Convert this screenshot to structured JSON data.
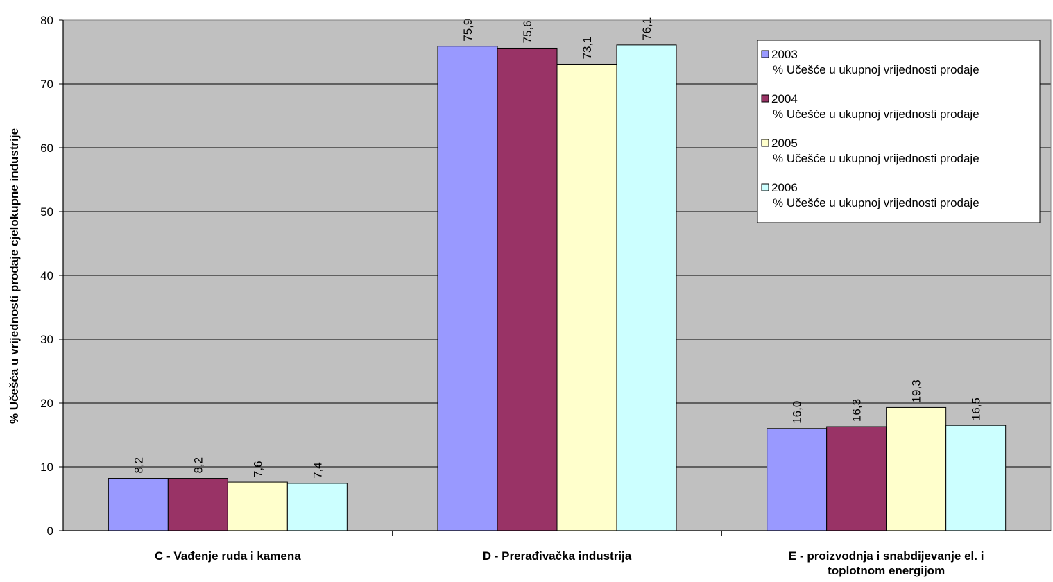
{
  "chart_data": {
    "type": "bar",
    "ylabel": "% Učešća u vrijednosti prodaje cjelokupne industrije",
    "ylim": [
      0,
      80
    ],
    "yticks": [
      0,
      10,
      20,
      30,
      40,
      50,
      60,
      70,
      80
    ],
    "categories": [
      [
        "C - Vađenje ruda i kamena"
      ],
      [
        "D - Prerađivačka industrija"
      ],
      [
        "E - proizvodnja i snabdijevanje el. i",
        "toplotnom energijom"
      ]
    ],
    "series": [
      {
        "name_year": "2003",
        "name_desc": "% Učešće u ukupnoj vrijednosti prodaje",
        "color": "#9999ff",
        "values": [
          8.2,
          75.9,
          16.0
        ],
        "labels": [
          "8,2",
          "75,9",
          "16,0"
        ]
      },
      {
        "name_year": "2004",
        "name_desc": "% Učešće u ukupnoj vrijednosti prodaje",
        "color": "#993366",
        "values": [
          8.2,
          75.6,
          16.3
        ],
        "labels": [
          "8,2",
          "75,6",
          "16,3"
        ]
      },
      {
        "name_year": "2005",
        "name_desc": "% Učešće u ukupnoj vrijednosti prodaje",
        "color": "#ffffcc",
        "values": [
          7.6,
          73.1,
          19.3
        ],
        "labels": [
          "7,6",
          "73,1",
          "19,3"
        ]
      },
      {
        "name_year": "2006",
        "name_desc": "% Učešće u ukupnoj vrijednosti prodaje",
        "color": "#ccffff",
        "values": [
          7.4,
          76.1,
          16.5
        ],
        "labels": [
          "7,4",
          "76,1",
          "16,5"
        ]
      }
    ],
    "plot_background": "#c0c0c0",
    "grid": true,
    "legend_position": "top-right"
  }
}
